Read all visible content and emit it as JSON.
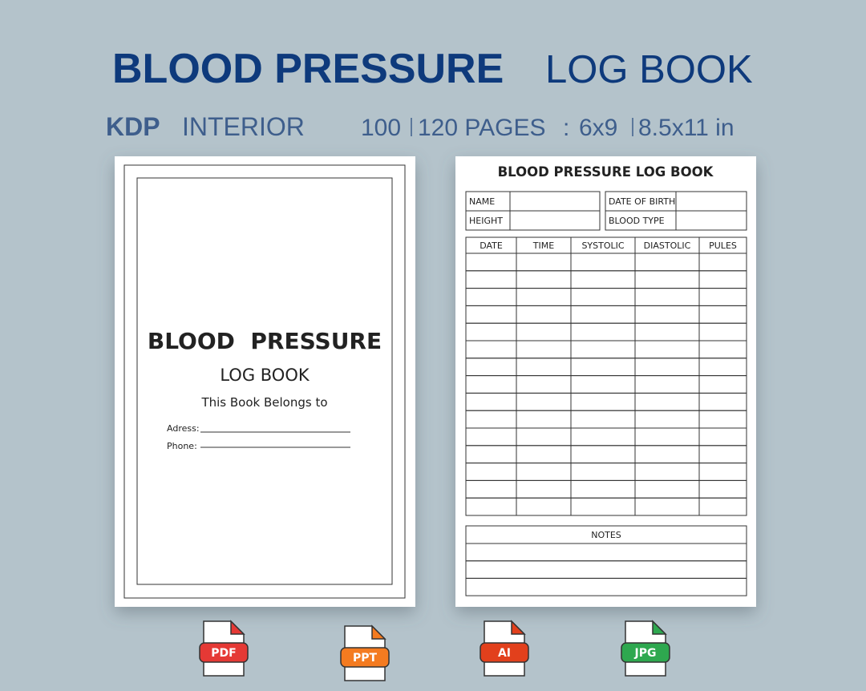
{
  "header": {
    "title_bold": "BLOOD PRESSURE",
    "title_light": "LOG BOOK",
    "subtitle": {
      "kdp": "KDP",
      "interior": "INTERIOR",
      "pages_a": "100",
      "pages_b": "120 PAGES",
      "colon": ":",
      "size_a": "6x9",
      "size_b": "8.5x11 in"
    }
  },
  "cover": {
    "title": "BLOOD  PRESSURE",
    "subtitle": "LOG BOOK",
    "belongs": "This Book Belongs to",
    "fields": [
      "Adress:",
      "Phone:"
    ]
  },
  "log_page": {
    "title": "BLOOD PRESSURE LOG BOOK",
    "info_fields": [
      "NAME",
      "HEIGHT",
      "DATE OF BIRTH",
      "BLOOD TYPE"
    ],
    "table_headers": [
      "DATE",
      "TIME",
      "SYSTOLIC",
      "DIASTOLIC",
      "PULES"
    ],
    "notes_label": "NOTES"
  },
  "formats": [
    {
      "label": "PDF",
      "color": "#e53935"
    },
    {
      "label": "PPT",
      "color": "#f47b20"
    },
    {
      "label": "AI",
      "color": "#e2401c"
    },
    {
      "label": "JPG",
      "color": "#2ea84f"
    }
  ]
}
